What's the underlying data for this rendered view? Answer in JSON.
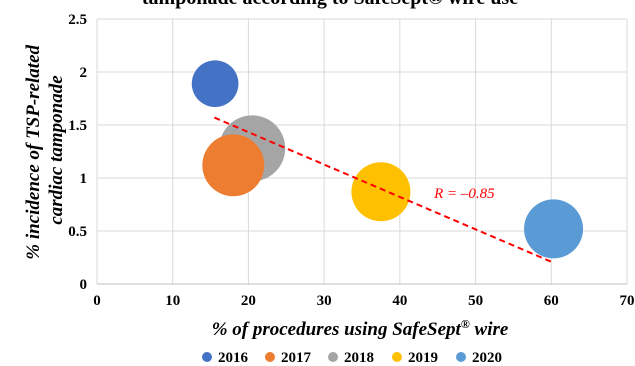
{
  "chart_data": {
    "type": "scatter",
    "title": "tamponade according to SafeSept® wire use",
    "xlabel_parts": [
      "% of procedures using SafeSept",
      "®",
      " wire"
    ],
    "ylabel_lines": [
      "% incidence of TSP-related",
      "cardiac tamponade"
    ],
    "xlim": [
      0,
      70
    ],
    "ylim": [
      0,
      2.5
    ],
    "x_ticks": [
      0,
      10,
      20,
      30,
      40,
      50,
      60,
      70
    ],
    "y_ticks": [
      0,
      0.5,
      1,
      1.5,
      2,
      2.5
    ],
    "y_tick_labels": [
      "0",
      "0.5",
      "1",
      "1.5",
      "2",
      "2.5"
    ],
    "grid": true,
    "legend_position": "bottom",
    "series": [
      {
        "name": "2016",
        "x": 15.6,
        "y": 1.89,
        "size": 0.5,
        "color": "#4472C4"
      },
      {
        "name": "2017",
        "x": 18.0,
        "y": 1.12,
        "size": 0.88,
        "color": "#ED7D31"
      },
      {
        "name": "2018",
        "x": 20.5,
        "y": 1.28,
        "size": 1.0,
        "color": "#A5A5A5"
      },
      {
        "name": "2019",
        "x": 37.5,
        "y": 0.87,
        "size": 0.8,
        "color": "#FFC000"
      },
      {
        "name": "2020",
        "x": 60.3,
        "y": 0.52,
        "size": 0.8,
        "color": "#5B9BD5"
      }
    ],
    "trendline": {
      "x1": 15.5,
      "y1": 1.57,
      "x2": 60.0,
      "y2": 0.21,
      "color": "#FF0000",
      "style": "dashed"
    },
    "annotation": {
      "text": "R = –0.85",
      "x": 50.2,
      "y": 0.86,
      "color": "#FF0000"
    }
  }
}
